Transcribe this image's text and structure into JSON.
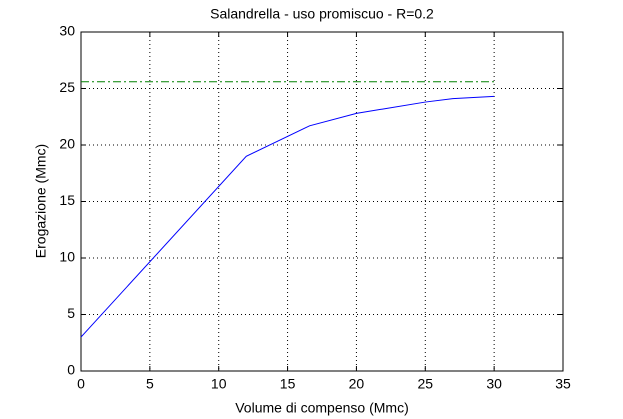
{
  "chart_data": {
    "type": "line",
    "title": "Salandrella  -  uso promiscuo  -   R=0.2",
    "x_label": "Volume di compenso (Mmc)",
    "y_label": "Erogazione (Mmc)",
    "xlim": [
      0,
      35
    ],
    "xticks": [
      0,
      5,
      10,
      15,
      20,
      25,
      30,
      35
    ],
    "ylim": [
      0,
      30
    ],
    "yticks": [
      0,
      5,
      10,
      15,
      20,
      25,
      30
    ],
    "grid": true,
    "series": [
      {
        "color": "#0000ff",
        "style": "solid",
        "x": [
          0,
          12,
          16.6,
          20,
          22,
          25,
          27,
          30
        ],
        "values": [
          3,
          19,
          21.7,
          22.8,
          23.2,
          23.8,
          24.1,
          24.3
        ]
      },
      {
        "color": "#008000",
        "style": "dash-dot",
        "x": [
          0,
          30
        ],
        "values": [
          25.6,
          25.6
        ]
      }
    ]
  }
}
